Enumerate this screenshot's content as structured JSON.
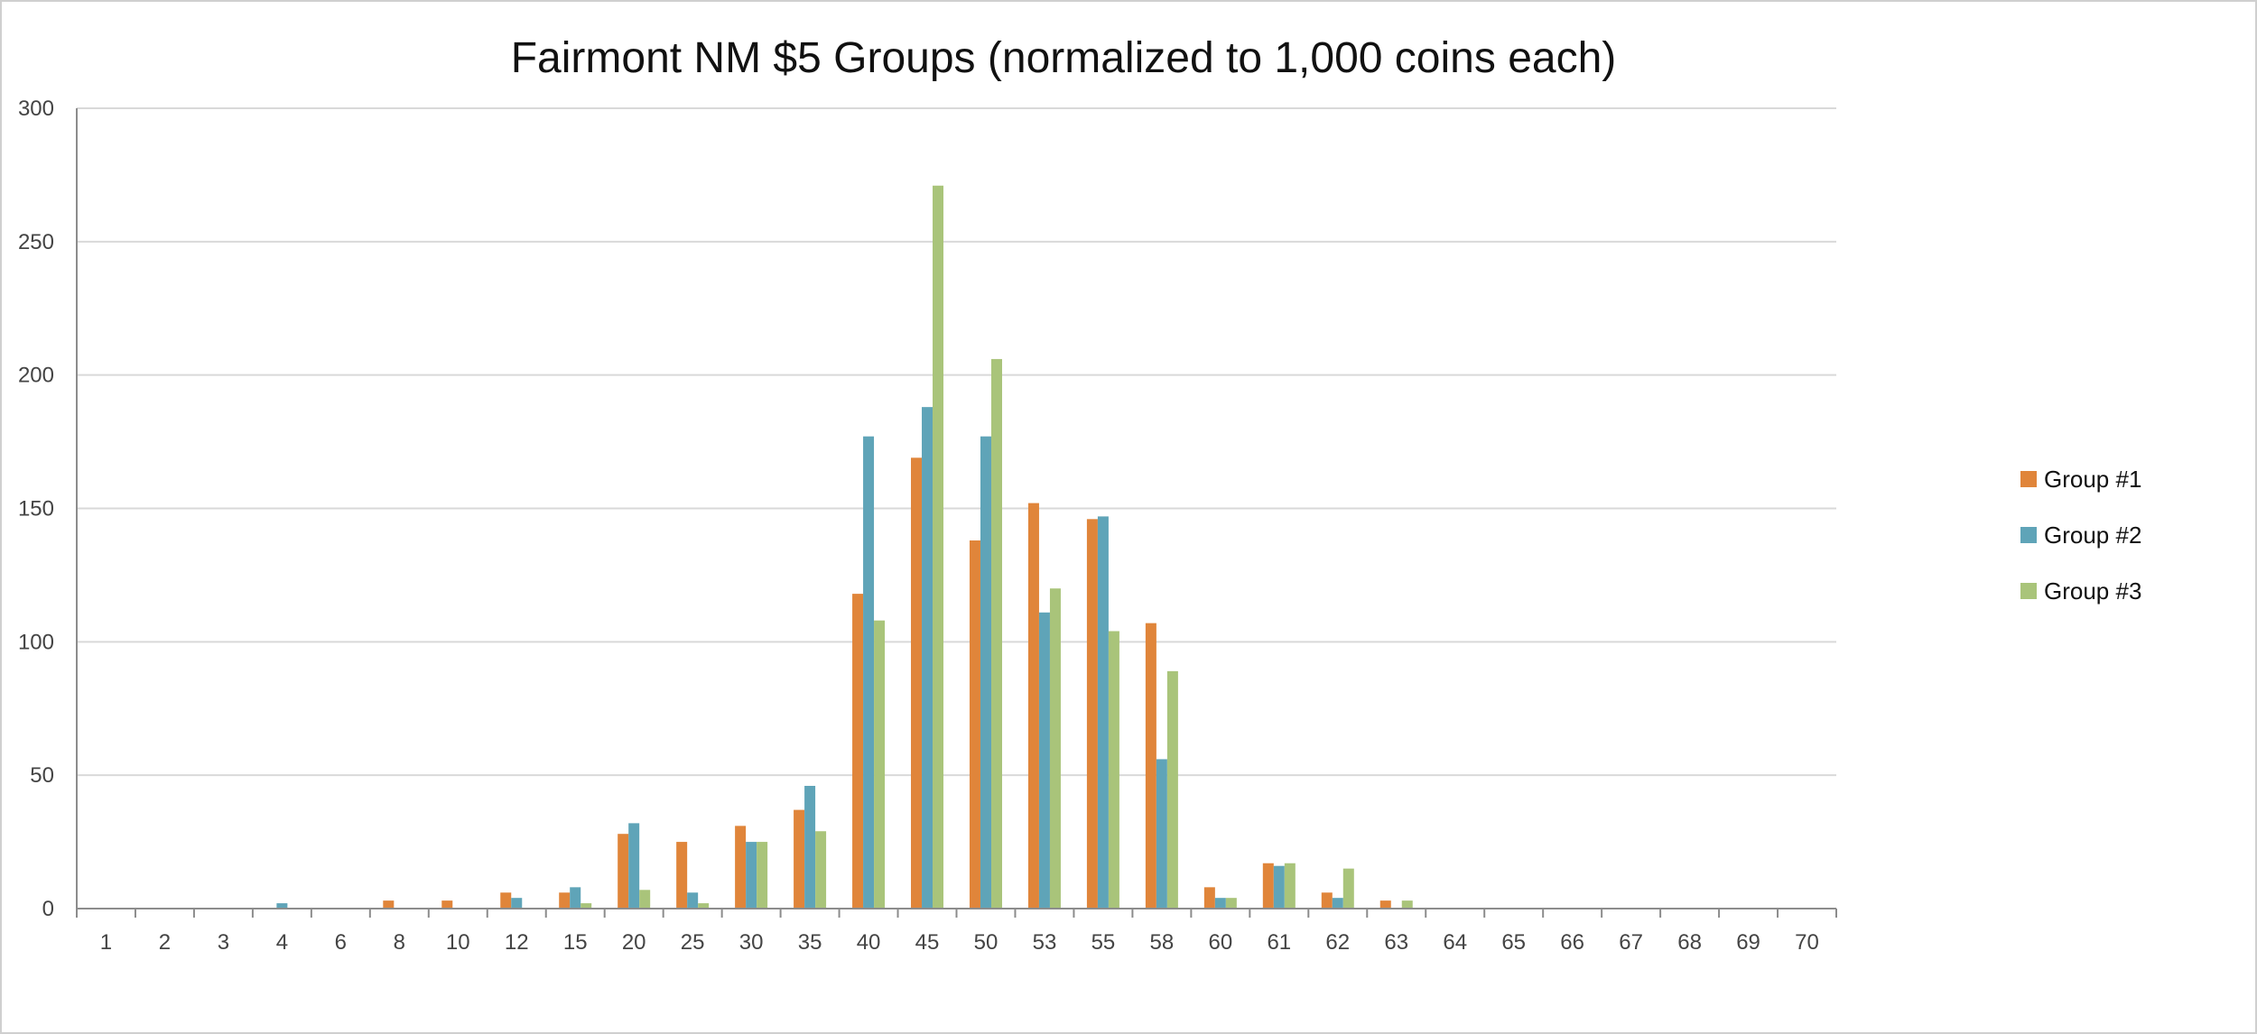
{
  "chart_data": {
    "type": "bar",
    "title": "Fairmont NM $5 Groups (normalized to 1,000 coins each)",
    "xlabel": "",
    "ylabel": "",
    "ylim": [
      0,
      300
    ],
    "yticks": [
      0,
      50,
      100,
      150,
      200,
      250,
      300
    ],
    "grid": true,
    "legend_position": "right",
    "categories": [
      "1",
      "2",
      "3",
      "4",
      "6",
      "8",
      "10",
      "12",
      "15",
      "20",
      "25",
      "30",
      "35",
      "40",
      "45",
      "50",
      "53",
      "55",
      "58",
      "60",
      "61",
      "62",
      "63",
      "64",
      "65",
      "66",
      "67",
      "68",
      "69",
      "70"
    ],
    "series": [
      {
        "name": "Group #1",
        "color": "#e0853a",
        "values": [
          0,
          0,
          0,
          0,
          0,
          3,
          3,
          6,
          6,
          28,
          25,
          31,
          37,
          118,
          169,
          138,
          152,
          146,
          107,
          8,
          17,
          6,
          3,
          0,
          0,
          0,
          0,
          0,
          0,
          0
        ]
      },
      {
        "name": "Group #2",
        "color": "#5fa4b8",
        "values": [
          0,
          0,
          0,
          2,
          0,
          0,
          0,
          4,
          8,
          32,
          6,
          25,
          46,
          177,
          188,
          177,
          111,
          147,
          56,
          4,
          16,
          4,
          0,
          0,
          0,
          0,
          0,
          0,
          0,
          0
        ]
      },
      {
        "name": "Group #3",
        "color": "#a9c47a",
        "values": [
          0,
          0,
          0,
          0,
          0,
          0,
          0,
          0,
          2,
          7,
          2,
          25,
          29,
          108,
          271,
          206,
          120,
          104,
          89,
          4,
          17,
          15,
          3,
          0,
          0,
          0,
          0,
          0,
          0,
          0
        ]
      }
    ]
  }
}
